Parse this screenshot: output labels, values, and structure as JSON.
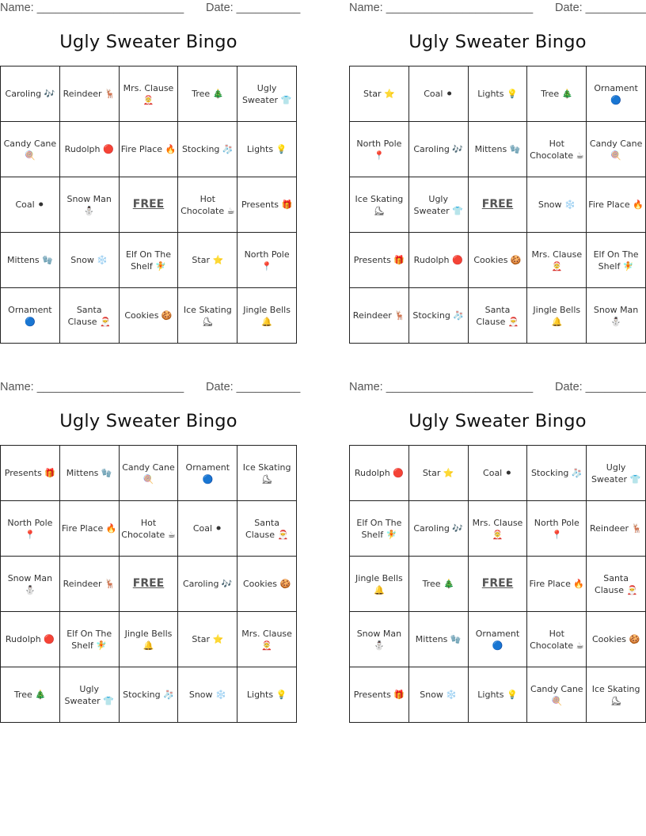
{
  "labels": {
    "name": "Name: _______________________",
    "date": "Date: __________",
    "title": "Ugly Sweater Bingo"
  },
  "cards": [
    {
      "cells": [
        "Caroling 🎶",
        "Reindeer 🦌",
        "Mrs. Clause 🤶",
        "Tree 🎄",
        "Ugly Sweater 👕",
        "Candy Cane 🍭",
        "Rudolph 🔴",
        "Fire Place 🔥",
        "Stocking 🧦",
        "Lights 💡",
        "Coal ⚫",
        "Snow Man ⛄",
        "FREE",
        "Hot Chocolate ☕",
        "Presents 🎁",
        "Mittens 🧤",
        "Snow ❄️",
        "Elf On The Shelf 🧚",
        "Star ⭐",
        "North Pole 📍",
        "Ornament 🔵",
        "Santa Clause 🎅",
        "Cookies 🍪",
        "Ice Skating ⛸",
        "Jingle Bells 🔔"
      ]
    },
    {
      "cells": [
        "Star ⭐",
        "Coal ⚫",
        "Lights 💡",
        "Tree 🎄",
        "Ornament 🔵",
        "North Pole 📍",
        "Caroling 🎶",
        "Mittens 🧤",
        "Hot Chocolate ☕",
        "Candy Cane 🍭",
        "Ice Skating ⛸",
        "Ugly Sweater 👕",
        "FREE",
        "Snow ❄️",
        "Fire Place 🔥",
        "Presents 🎁",
        "Rudolph 🔴",
        "Cookies 🍪",
        "Mrs. Clause 🤶",
        "Elf On The Shelf 🧚",
        "Reindeer 🦌",
        "Stocking 🧦",
        "Santa Clause 🎅",
        "Jingle Bells 🔔",
        "Snow Man ⛄"
      ]
    },
    {
      "cells": [
        "Presents 🎁",
        "Mittens 🧤",
        "Candy Cane 🍭",
        "Ornament 🔵",
        "Ice Skating ⛸",
        "North Pole 📍",
        "Fire Place 🔥",
        "Hot Chocolate ☕",
        "Coal ⚫",
        "Santa Clause 🎅",
        "Snow Man ⛄",
        "Reindeer 🦌",
        "FREE",
        "Caroling 🎶",
        "Cookies 🍪",
        "Rudolph 🔴",
        "Elf On The Shelf 🧚",
        "Jingle Bells 🔔",
        "Star ⭐",
        "Mrs. Clause 🤶",
        "Tree 🎄",
        "Ugly Sweater 👕",
        "Stocking 🧦",
        "Snow ❄️",
        "Lights 💡"
      ]
    },
    {
      "cells": [
        "Rudolph 🔴",
        "Star ⭐",
        "Coal ⚫",
        "Stocking 🧦",
        "Ugly Sweater 👕",
        "Elf On The Shelf 🧚",
        "Caroling 🎶",
        "Mrs. Clause 🤶",
        "North Pole 📍",
        "Reindeer 🦌",
        "Jingle Bells 🔔",
        "Tree 🎄",
        "FREE",
        "Fire Place 🔥",
        "Santa Clause 🎅",
        "Snow Man ⛄",
        "Mittens 🧤",
        "Ornament 🔵",
        "Hot Chocolate ☕",
        "Cookies 🍪",
        "Presents 🎁",
        "Snow ❄️",
        "Lights 💡",
        "Candy Cane 🍭",
        "Ice Skating ⛸"
      ]
    }
  ]
}
